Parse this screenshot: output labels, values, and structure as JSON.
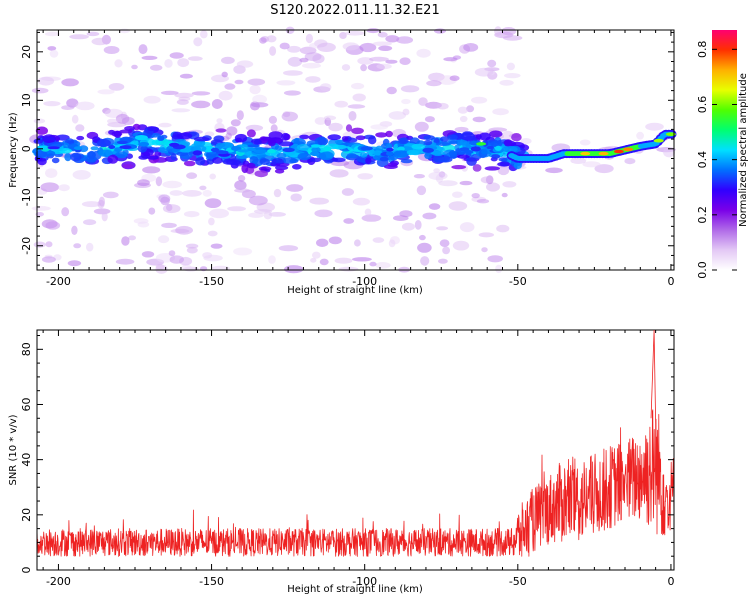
{
  "figure": {
    "title": "S120.2022.011.11.32.E21"
  },
  "chart_data": [
    {
      "type": "heatmap",
      "xlabel": "Height of straight line (km)",
      "ylabel": "Frequency (Hz)",
      "xlim": [
        -207,
        1
      ],
      "ylim": [
        -25,
        24.5
      ],
      "xticks": [
        -200,
        -150,
        -100,
        -50,
        0
      ],
      "yticks": [
        -20,
        -10,
        0,
        10,
        20
      ],
      "ridge": {
        "x": [
          -207,
          -190,
          -170,
          -150,
          -130,
          -110,
          -90,
          -70,
          -55,
          -50,
          -40,
          -35,
          -30,
          -20,
          -10,
          -5,
          -2,
          1
        ],
        "frequency": [
          0,
          -0.5,
          1.5,
          0,
          -1,
          0,
          -0.5,
          0.5,
          -0.5,
          -2,
          -2,
          -1,
          -1,
          -1,
          0.5,
          1,
          3,
          3
        ]
      },
      "colorbar": {
        "label": "Normalized spectral amplitude",
        "range": [
          0,
          0.87
        ],
        "ticks": [
          "0.0",
          "0.2",
          "0.4",
          "0.6",
          "0.8"
        ],
        "tick_values": [
          0,
          0.2,
          0.4,
          0.6,
          0.8
        ],
        "colormap": [
          "#ffffff",
          "#e3c8f5",
          "#b06ae8",
          "#7a00e8",
          "#3000ff",
          "#0070ff",
          "#00e0ff",
          "#00ff70",
          "#50ff00",
          "#e8ff00",
          "#ffb000",
          "#ff3000",
          "#ff0070"
        ]
      }
    },
    {
      "type": "line",
      "xlabel": "Height of straight line (km)",
      "ylabel": "SNR (10 * v/v)",
      "xlim": [
        -207,
        1
      ],
      "ylim": [
        0,
        87
      ],
      "xticks": [
        -200,
        -150,
        -100,
        -50,
        0
      ],
      "yticks": [
        0,
        20,
        40,
        60,
        80
      ],
      "color": "#ee2222",
      "envelope": {
        "x": [
          -207,
          -150,
          -100,
          -52,
          -50,
          -45,
          -40,
          -35,
          -30,
          -25,
          -20,
          -15,
          -10,
          -5,
          -3,
          -1,
          1
        ],
        "baseline": [
          10,
          10,
          10,
          10,
          12,
          18,
          22,
          25,
          25,
          27,
          30,
          32,
          34,
          38,
          32,
          25,
          30
        ],
        "amplitude": [
          6,
          6,
          6,
          6,
          12,
          14,
          15,
          18,
          18,
          18,
          18,
          18,
          20,
          30,
          25,
          15,
          15
        ]
      }
    }
  ]
}
